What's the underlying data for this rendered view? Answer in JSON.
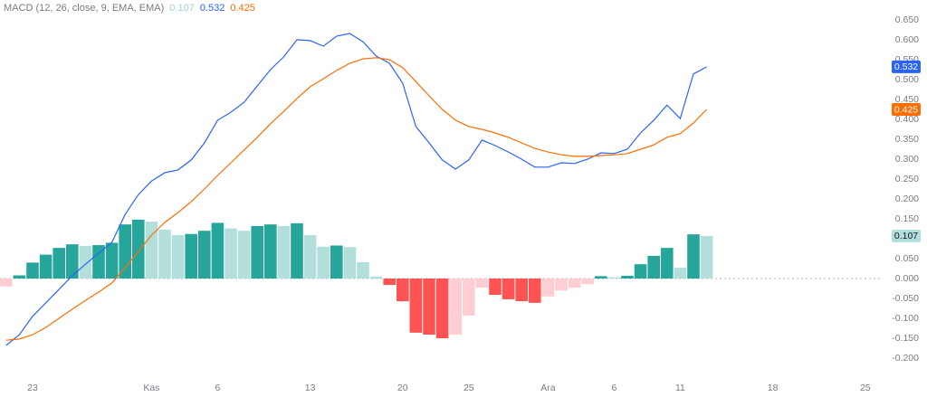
{
  "chart_data": {
    "type": "combo",
    "title": "MACD (12, 26, close, 9, EMA, EMA)",
    "categories": [
      null,
      null,
      "23",
      null,
      null,
      null,
      null,
      null,
      null,
      null,
      null,
      "Kas",
      null,
      null,
      null,
      null,
      "6",
      null,
      null,
      null,
      null,
      null,
      null,
      "13",
      null,
      null,
      null,
      null,
      null,
      null,
      "20",
      null,
      null,
      null,
      null,
      "25",
      null,
      null,
      null,
      null,
      null,
      "Ara",
      null,
      null,
      null,
      null,
      "6",
      null,
      null,
      null,
      null,
      "11",
      null,
      null,
      null,
      null,
      null,
      null,
      "18",
      null,
      null,
      null,
      null,
      null,
      null,
      "25",
      null
    ],
    "series": [
      {
        "type": "bar",
        "colors": [
          "#ffcdd2",
          "#26a69a",
          "#26a69a",
          "#26a69a",
          "#26a69a",
          "#26a69a",
          "#b2dfdb",
          "#26a69a",
          "#26a69a",
          "#26a69a",
          "#26a69a",
          "#b2dfdb",
          "#b2dfdb",
          "#b2dfdb",
          "#26a69a",
          "#26a69a",
          "#26a69a",
          "#b2dfdb",
          "#b2dfdb",
          "#26a69a",
          "#26a69a",
          "#b2dfdb",
          "#26a69a",
          "#b2dfdb",
          "#b2dfdb",
          "#26a69a",
          "#b2dfdb",
          "#b2dfdb",
          "#b2dfdb",
          "#ff5252",
          "#ff5252",
          "#ff5252",
          "#ff5252",
          "#ff5252",
          "#ffcdd2",
          "#ffcdd2",
          "#ffcdd2",
          "#ff5252",
          "#ff5252",
          "#ff5252",
          "#ff5252",
          "#ffcdd2",
          "#ffcdd2",
          "#ffcdd2",
          "#ffcdd2",
          "#26a69a",
          "#b2dfdb",
          "#26a69a",
          "#26a69a",
          "#26a69a",
          "#26a69a",
          "#b2dfdb",
          "#26a69a",
          "#b2dfdb"
        ],
        "values": [
          -0.02,
          0.008,
          0.04,
          0.06,
          0.077,
          0.086,
          0.082,
          0.084,
          0.09,
          0.136,
          0.148,
          0.143,
          0.123,
          0.109,
          0.112,
          0.12,
          0.14,
          0.126,
          0.12,
          0.132,
          0.136,
          0.132,
          0.139,
          0.109,
          0.08,
          0.083,
          0.079,
          0.041,
          0.005,
          -0.016,
          -0.057,
          -0.136,
          -0.141,
          -0.15,
          -0.141,
          -0.093,
          -0.023,
          -0.041,
          -0.052,
          -0.057,
          -0.061,
          -0.045,
          -0.03,
          -0.023,
          -0.014,
          0.006,
          0.003,
          0.007,
          0.036,
          0.057,
          0.077,
          0.027,
          0.111,
          0.107,
          null,
          null,
          null,
          null,
          null,
          null,
          null,
          null,
          null,
          null,
          null,
          null,
          null
        ]
      },
      {
        "type": "line",
        "color": "#2962ff",
        "values": [
          -0.168,
          -0.141,
          -0.095,
          -0.061,
          -0.027,
          0.007,
          0.036,
          0.064,
          0.091,
          0.161,
          0.211,
          0.245,
          0.266,
          0.273,
          0.298,
          0.341,
          0.398,
          0.418,
          0.443,
          0.484,
          0.525,
          0.557,
          0.6,
          0.598,
          0.584,
          0.609,
          0.616,
          0.595,
          0.559,
          0.541,
          0.491,
          0.382,
          0.341,
          0.298,
          0.275,
          0.298,
          0.348,
          0.334,
          0.318,
          0.3,
          0.28,
          0.28,
          0.291,
          0.289,
          0.3,
          0.316,
          0.314,
          0.325,
          0.366,
          0.398,
          0.436,
          0.402,
          0.514,
          0.532,
          null,
          null,
          null,
          null,
          null,
          null,
          null,
          null,
          null,
          null,
          null,
          null,
          null
        ]
      },
      {
        "type": "line",
        "color": "#ff6d00",
        "values": [
          -0.155,
          -0.152,
          -0.141,
          -0.123,
          -0.1,
          -0.077,
          -0.055,
          -0.034,
          -0.011,
          0.027,
          0.068,
          0.109,
          0.141,
          0.166,
          0.193,
          0.225,
          0.259,
          0.291,
          0.323,
          0.355,
          0.389,
          0.42,
          0.452,
          0.482,
          0.502,
          0.523,
          0.541,
          0.552,
          0.555,
          0.55,
          0.53,
          0.495,
          0.459,
          0.425,
          0.398,
          0.382,
          0.375,
          0.366,
          0.355,
          0.341,
          0.327,
          0.318,
          0.311,
          0.307,
          0.307,
          0.309,
          0.311,
          0.314,
          0.325,
          0.336,
          0.355,
          0.364,
          0.391,
          0.425,
          null,
          null,
          null,
          null,
          null,
          null,
          null,
          null,
          null,
          null,
          null,
          null,
          null
        ]
      }
    ],
    "ylim": [
      -0.2545,
      0.7
    ],
    "yticks": [
      {
        "value": -0.2,
        "label": "-0.200"
      },
      {
        "value": -0.15,
        "label": "-0.150"
      },
      {
        "value": -0.1,
        "label": "-0.100"
      },
      {
        "value": -0.05,
        "label": "-0.050"
      },
      {
        "value": 0,
        "label": "0.000"
      },
      {
        "value": 0.05,
        "label": "0.050"
      },
      {
        "value": 0.1,
        "label": "0.100"
      },
      {
        "value": 0.15,
        "label": "0.150"
      },
      {
        "value": 0.2,
        "label": "0.200"
      },
      {
        "value": 0.25,
        "label": "0.250"
      },
      {
        "value": 0.3,
        "label": "0.300"
      },
      {
        "value": 0.35,
        "label": "0.350"
      },
      {
        "value": 0.4,
        "label": "0.400"
      },
      {
        "value": 0.45,
        "label": "0.450"
      },
      {
        "value": 0.5,
        "label": "0.500"
      },
      {
        "value": 0.55,
        "label": "0.550"
      },
      {
        "value": 0.6,
        "label": "0.600"
      },
      {
        "value": 0.65,
        "label": "0.650"
      }
    ],
    "zero_line": true
  }
}
